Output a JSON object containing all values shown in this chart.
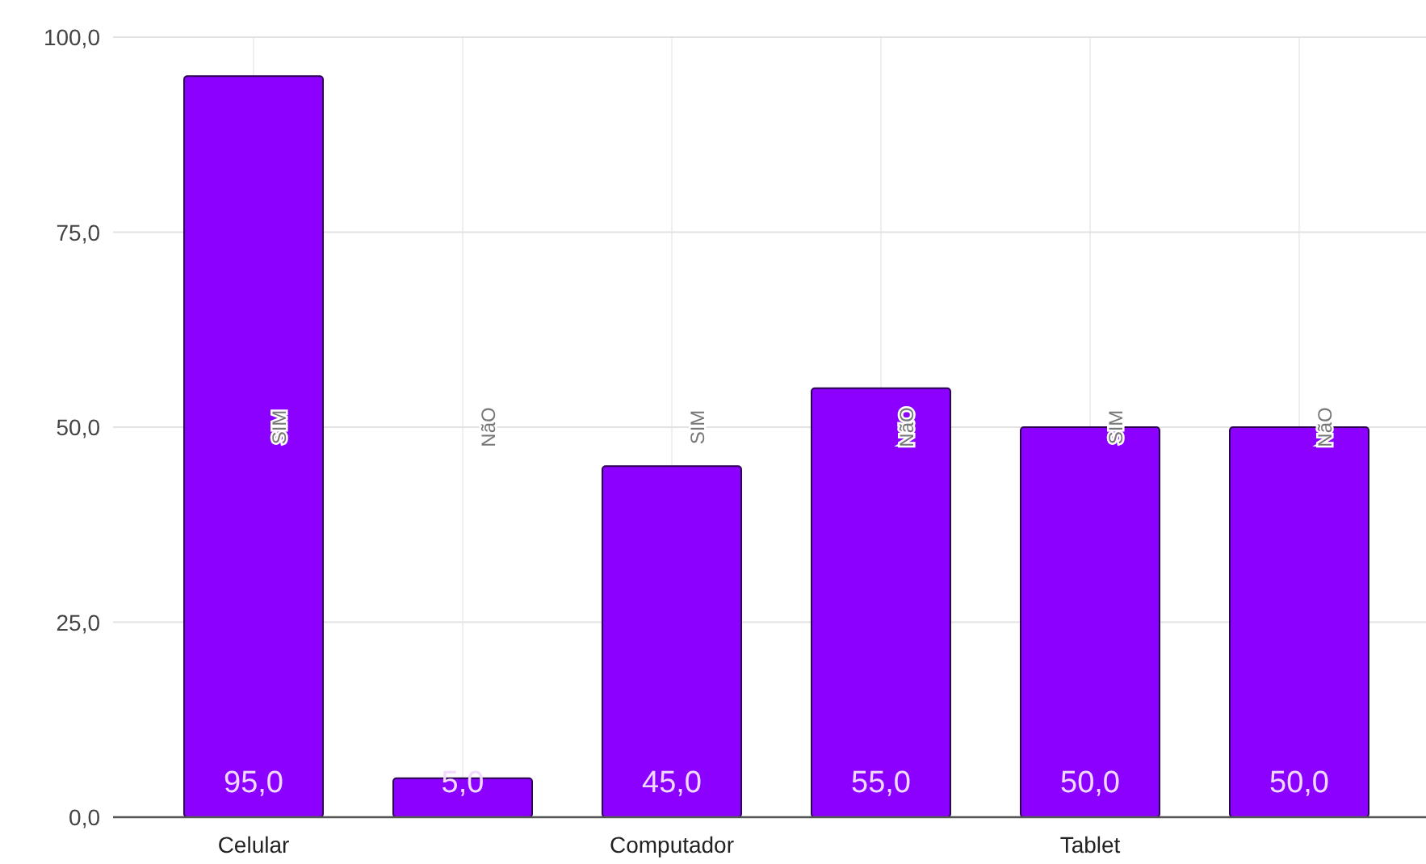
{
  "chart_data": {
    "type": "bar",
    "categories": [
      "Celular",
      null,
      "Computador",
      null,
      "Tablet",
      null
    ],
    "series": [
      {
        "name": "SIM",
        "color": "#8b00ff",
        "values": [
          95,
          null,
          45,
          null,
          50,
          null
        ],
        "value_labels": [
          "95,0",
          null,
          "45,0",
          null,
          "50,0",
          null
        ]
      },
      {
        "name": "NãO",
        "color": "#8b00ff",
        "values": [
          null,
          5,
          null,
          55,
          null,
          50
        ],
        "value_labels": [
          null,
          "5,0",
          null,
          "55,0",
          null,
          "50,0"
        ]
      }
    ],
    "ylim": [
      0,
      100
    ],
    "yticks": [
      {
        "value": 0,
        "label": "0,0"
      },
      {
        "value": 25,
        "label": "25,0"
      },
      {
        "value": 50,
        "label": "50,0"
      },
      {
        "value": 75,
        "label": "75,0"
      },
      {
        "value": 100,
        "label": "100,0"
      }
    ],
    "grid": true
  }
}
